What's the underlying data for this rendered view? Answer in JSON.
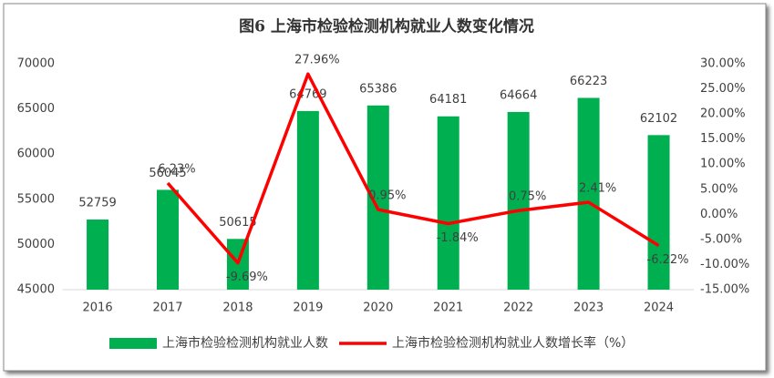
{
  "chart_data": {
    "type": "bar",
    "title": "图6 上海市检验检测机构就业人数变化情况",
    "categories": [
      "2016",
      "2017",
      "2018",
      "2019",
      "2020",
      "2021",
      "2022",
      "2023",
      "2024"
    ],
    "series": [
      {
        "name": "上海市检验检测机构就业人数",
        "type": "bar",
        "color": "#00b050",
        "values": [
          52759,
          56045,
          50615,
          64769,
          65386,
          64181,
          64664,
          66223,
          62102
        ]
      },
      {
        "name": "上海市检验检测机构就业人数增长率（%）",
        "type": "line",
        "color": "#ff0000",
        "axis": "y2",
        "values": [
          null,
          6.23,
          -9.69,
          27.96,
          0.95,
          -1.84,
          0.75,
          2.41,
          -6.22
        ],
        "value_labels": [
          null,
          "6.23%",
          "-9.69%",
          "27.96%",
          "0.95%",
          "-1.84%",
          "0.75%",
          "2.41%",
          "-6.22%"
        ]
      }
    ],
    "ylim": [
      45000,
      70000
    ],
    "yticks": [
      45000,
      50000,
      55000,
      60000,
      65000,
      70000
    ],
    "y2lim": [
      -15,
      30
    ],
    "y2ticks": [
      {
        "value": -15,
        "label": "-15.00%"
      },
      {
        "value": -10,
        "label": "-10.00%"
      },
      {
        "value": -5,
        "label": "-5.00%"
      },
      {
        "value": 0,
        "label": "0.00%"
      },
      {
        "value": 5,
        "label": "5.00%"
      },
      {
        "value": 10,
        "label": "10.00%"
      },
      {
        "value": 15,
        "label": "15.00%"
      },
      {
        "value": 20,
        "label": "20.00%"
      },
      {
        "value": 25,
        "label": "25.00%"
      },
      {
        "value": 30,
        "label": "30.00%"
      }
    ],
    "grid": false,
    "legend": "bottom"
  }
}
